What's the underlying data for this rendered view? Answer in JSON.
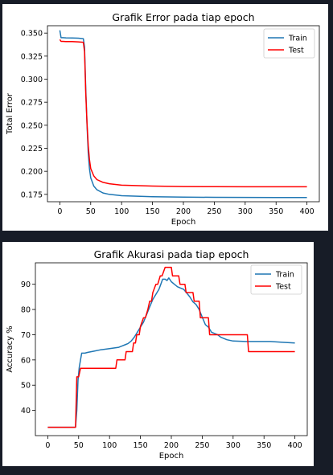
{
  "colors": {
    "train": "#1f77b4",
    "test": "#ff0000",
    "background": "#171c27"
  },
  "chart_data": [
    {
      "type": "line",
      "title": "Grafik Error pada tiap epoch",
      "xlabel": "Epoch",
      "ylabel": "Total Error",
      "xlim": [
        -20,
        420
      ],
      "ylim": [
        0.167,
        0.358
      ],
      "xticks": [
        0,
        50,
        100,
        150,
        200,
        250,
        300,
        350,
        400
      ],
      "yticks": [
        0.175,
        0.2,
        0.225,
        0.25,
        0.275,
        0.3,
        0.325,
        0.35
      ],
      "ytick_labels": [
        "0.175",
        "0.200",
        "0.225",
        "0.250",
        "0.275",
        "0.300",
        "0.325",
        "0.350"
      ],
      "legend": "top-right",
      "series": [
        {
          "name": "Train",
          "color": "#1f77b4",
          "x": [
            0,
            2,
            5,
            10,
            20,
            30,
            38,
            40,
            42,
            44,
            46,
            48,
            50,
            55,
            60,
            70,
            80,
            100,
            150,
            200,
            250,
            300,
            350,
            400
          ],
          "y": [
            0.353,
            0.345,
            0.345,
            0.3448,
            0.3447,
            0.3445,
            0.344,
            0.335,
            0.29,
            0.25,
            0.22,
            0.203,
            0.193,
            0.184,
            0.18,
            0.1765,
            0.175,
            0.1735,
            0.1725,
            0.172,
            0.1718,
            0.1717,
            0.1716,
            0.1716
          ]
        },
        {
          "name": "Test",
          "color": "#ff0000",
          "x": [
            0,
            2,
            5,
            10,
            20,
            30,
            38,
            40,
            42,
            44,
            46,
            48,
            50,
            55,
            60,
            70,
            80,
            100,
            150,
            200,
            250,
            300,
            350,
            400
          ],
          "y": [
            0.343,
            0.341,
            0.341,
            0.3408,
            0.3407,
            0.3405,
            0.34,
            0.33,
            0.285,
            0.252,
            0.228,
            0.213,
            0.203,
            0.195,
            0.191,
            0.188,
            0.1865,
            0.185,
            0.184,
            0.1835,
            0.1833,
            0.1832,
            0.1832,
            0.1832
          ]
        }
      ]
    },
    {
      "type": "line",
      "title": "Grafik Akurasi pada tiap epoch",
      "xlabel": "Epoch",
      "ylabel": "Accuracy %",
      "xlim": [
        -20,
        420
      ],
      "ylim": [
        30,
        98.5
      ],
      "xticks": [
        0,
        50,
        100,
        150,
        200,
        250,
        300,
        350,
        400
      ],
      "yticks": [
        40,
        50,
        60,
        70,
        80,
        90
      ],
      "ytick_labels": [
        "40",
        "50",
        "60",
        "70",
        "80",
        "90"
      ],
      "legend": "top-right",
      "series": [
        {
          "name": "Train",
          "color": "#1f77b4",
          "x": [
            0,
            45,
            47,
            49,
            51,
            53,
            55,
            60,
            65,
            75,
            85,
            100,
            115,
            120,
            125,
            130,
            135,
            140,
            145,
            150,
            155,
            160,
            165,
            170,
            175,
            180,
            183,
            186,
            190,
            193,
            196,
            200,
            205,
            210,
            215,
            220,
            225,
            230,
            235,
            240,
            245,
            250,
            255,
            260,
            265,
            270,
            275,
            280,
            290,
            300,
            320,
            340,
            360,
            380,
            400
          ],
          "y": [
            33.3,
            33.3,
            40,
            52,
            57,
            60,
            62.7,
            62.7,
            63,
            63.5,
            64,
            64.5,
            65,
            65.5,
            66,
            66.5,
            67.5,
            69,
            71,
            73,
            75,
            78,
            81,
            84,
            86,
            88,
            90,
            92,
            92,
            91.5,
            92.5,
            91,
            90,
            89,
            88.5,
            88,
            86.5,
            85,
            83,
            82,
            80,
            77,
            74,
            73,
            71,
            70.5,
            70,
            69,
            68,
            67.5,
            67.3,
            67.3,
            67.3,
            67,
            66.7
          ]
        },
        {
          "name": "Test",
          "color": "#ff0000",
          "x": [
            0,
            45,
            47,
            50,
            53,
            55,
            75,
            85,
            95,
            110,
            112,
            125,
            127,
            137,
            139,
            142,
            144,
            148,
            150,
            155,
            158,
            162,
            165,
            168,
            170,
            175,
            178,
            182,
            185,
            190,
            192,
            200,
            202,
            212,
            214,
            222,
            224,
            235,
            237,
            245,
            247,
            260,
            262,
            300,
            323,
            325,
            350,
            400
          ],
          "y": [
            33.3,
            33.3,
            53.3,
            53.3,
            56.7,
            56.7,
            56.7,
            56.7,
            56.7,
            56.7,
            60,
            60,
            63.3,
            63.3,
            66.7,
            66.7,
            70,
            70,
            73.3,
            76.7,
            76.7,
            80,
            83.3,
            83.3,
            86.7,
            90,
            90,
            93.3,
            93.3,
            96.7,
            96.7,
            96.7,
            93.3,
            93.3,
            90,
            90,
            86.7,
            86.7,
            83.3,
            83.3,
            76.7,
            76.7,
            70,
            70,
            70,
            63.3,
            63.3,
            63.3
          ]
        }
      ]
    }
  ]
}
